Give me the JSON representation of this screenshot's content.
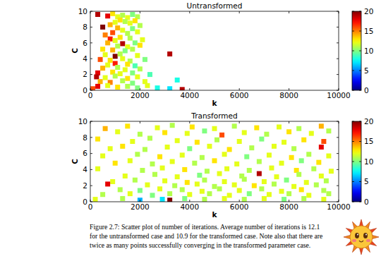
{
  "chart_data": [
    {
      "type": "scatter",
      "title": "Untransformed",
      "x_label": "k",
      "y_label": "C",
      "marker": "square",
      "xlim": [
        0,
        10000
      ],
      "ylim": [
        0,
        10
      ],
      "xticks": [
        0,
        2000,
        4000,
        6000,
        8000,
        10000
      ],
      "yticks": [
        0,
        2,
        4,
        6,
        8,
        10
      ],
      "color_range": [
        0,
        20
      ],
      "color_ticks": [
        0,
        5,
        10,
        15,
        20
      ],
      "x": [
        300,
        700,
        900,
        1100,
        1300,
        1500,
        1700,
        1900,
        1200,
        1000,
        800,
        1400,
        1600,
        1800,
        2000,
        500,
        1100,
        1300,
        1700,
        900,
        600,
        1500,
        1900,
        1200,
        800,
        1000,
        1600,
        2100,
        700,
        1300,
        1800,
        1100,
        1500,
        2000,
        500,
        900,
        1400,
        1700,
        3200,
        1000,
        600,
        1200,
        1900,
        400,
        800,
        1300,
        1600,
        2200,
        1000,
        700,
        1500,
        1800,
        500,
        1100,
        1400,
        2000,
        300,
        900,
        1200,
        1700,
        2400,
        250,
        600,
        1000,
        1500,
        1900,
        3500,
        400,
        800,
        1300,
        1700,
        2200,
        300,
        700,
        1100,
        1500,
        1900,
        2700,
        3200,
        3700,
        100,
        2300
      ],
      "values": [
        9.6,
        9.4,
        9.7,
        9.3,
        9.5,
        9.2,
        9.6,
        9.3,
        8.9,
        8.6,
        8.3,
        8.7,
        8.5,
        8.8,
        8.2,
        8.0,
        7.9,
        7.6,
        7.8,
        7.3,
        7.0,
        7.2,
        7.4,
        6.7,
        6.5,
        6.3,
        6.6,
        6.4,
        6.0,
        5.9,
        6.0,
        5.6,
        5.5,
        5.7,
        5.2,
        5.1,
        5.0,
        5.2,
        4.6,
        4.3,
        4.5,
        4.6,
        4.4,
        3.9,
        3.8,
        4.0,
        3.7,
        3.9,
        3.4,
        3.2,
        3.3,
        3.1,
        2.8,
        2.9,
        2.6,
        2.7,
        2.2,
        2.3,
        2.1,
        2.2,
        2.0,
        1.7,
        1.6,
        1.8,
        1.5,
        1.7,
        1.3,
        1.1,
        1.0,
        1.2,
        0.9,
        1.1,
        0.5,
        0.6,
        0.4,
        0.5,
        0.3,
        0.3,
        0.2,
        0.1,
        0.2,
        0.6
      ],
      "color_values": [
        19,
        18,
        13,
        12,
        11,
        12,
        10,
        11,
        13,
        12,
        14,
        11,
        12,
        13,
        11,
        20,
        14,
        12,
        10,
        16,
        15,
        11,
        12,
        13,
        17,
        12,
        11,
        12,
        14,
        19,
        10,
        11,
        12,
        13,
        13,
        14,
        10,
        11,
        19,
        20,
        12,
        11,
        12,
        16,
        13,
        12,
        11,
        10,
        17,
        12,
        13,
        9,
        14,
        11,
        12,
        11,
        18,
        13,
        12,
        10,
        9,
        19,
        12,
        11,
        13,
        12,
        8,
        14,
        15,
        11,
        10,
        12,
        18,
        12,
        13,
        11,
        10,
        8,
        7,
        19,
        16,
        12
      ]
    },
    {
      "type": "scatter",
      "title": "Transformed",
      "x_label": "k",
      "y_label": "C",
      "marker": "square",
      "xlim": [
        0,
        10000
      ],
      "ylim": [
        0,
        10
      ],
      "xticks": [
        0,
        2000,
        4000,
        6000,
        8000,
        10000
      ],
      "yticks": [
        0,
        2,
        4,
        6,
        8,
        10
      ],
      "color_range": [
        0,
        20
      ],
      "color_ticks": [
        0,
        5,
        10,
        15,
        20
      ],
      "x": [
        600,
        1500,
        2700,
        3300,
        4100,
        5000,
        5800,
        6700,
        7600,
        8400,
        9300,
        1100,
        2000,
        3000,
        3900,
        4600,
        5300,
        6200,
        7100,
        8000,
        8900,
        9600,
        300,
        1700,
        2400,
        3500,
        4300,
        5100,
        6000,
        6900,
        7800,
        8600,
        9400,
        800,
        1300,
        2200,
        3100,
        4000,
        4800,
        5600,
        6500,
        7400,
        8200,
        9300,
        500,
        1900,
        2800,
        3700,
        4500,
        5400,
        6300,
        7200,
        8100,
        8800,
        9600,
        1000,
        1600,
        2500,
        3300,
        4200,
        5000,
        5900,
        6800,
        7700,
        8500,
        9200,
        300,
        2100,
        2900,
        3800,
        4700,
        5500,
        6400,
        7300,
        8300,
        9000,
        9700,
        1400,
        2600,
        3500,
        4400,
        5200,
        6100,
        6800,
        7500,
        8400,
        9300,
        900,
        1800,
        3000,
        3900,
        4600,
        5400,
        6200,
        7000,
        7900,
        8700,
        9500,
        700,
        2300,
        3400,
        4300,
        5000,
        5800,
        6600,
        7400,
        8200,
        9100,
        1200,
        2000,
        2800,
        3700,
        4500,
        5200,
        6000,
        6900,
        7700,
        8500,
        9400,
        500,
        1600,
        2500,
        3200,
        4000,
        4800,
        5600,
        6400,
        7200,
        8000,
        8800,
        9600,
        200,
        1300,
        2000,
        2900,
        3200,
        3800,
        4600,
        5400,
        6200,
        7000,
        7800,
        8600,
        9400
      ],
      "values": [
        9.1,
        9.4,
        9.2,
        9.5,
        9.3,
        9.1,
        9.4,
        9.2,
        9.3,
        9.1,
        9.4,
        8.7,
        8.4,
        8.6,
        8.5,
        8.8,
        8.3,
        8.6,
        8.4,
        8.7,
        8.5,
        8.8,
        7.8,
        7.5,
        7.9,
        7.6,
        7.4,
        7.7,
        7.5,
        7.8,
        7.4,
        7.7,
        7.5,
        6.6,
        6.9,
        6.5,
        6.8,
        6.6,
        6.9,
        6.5,
        6.7,
        6.9,
        6.6,
        6.8,
        5.7,
        5.9,
        5.6,
        5.8,
        5.5,
        5.9,
        5.6,
        5.8,
        5.5,
        5.9,
        5.7,
        4.8,
        5.1,
        4.7,
        5.0,
        4.8,
        5.1,
        4.7,
        5.0,
        4.8,
        5.1,
        4.9,
        4.1,
        3.9,
        4.2,
        4.0,
        3.8,
        4.1,
        3.9,
        4.2,
        3.9,
        4.1,
        3.8,
        3.2,
        3.4,
        3.1,
        3.3,
        3.5,
        3.2,
        3.5,
        3.1,
        3.4,
        3.2,
        2.5,
        2.7,
        2.6,
        2.4,
        2.7,
        2.5,
        2.8,
        2.5,
        2.7,
        2.4,
        2.6,
        2.2,
        2.1,
        2.0,
        2.2,
        1.9,
        2.1,
        2.0,
        2.2,
        1.9,
        2.1,
        1.5,
        1.4,
        1.6,
        1.5,
        1.3,
        1.6,
        1.4,
        1.6,
        1.3,
        1.5,
        1.4,
        0.9,
        1.0,
        0.8,
        1.0,
        0.9,
        1.0,
        0.8,
        1.0,
        0.9,
        1.0,
        0.8,
        1.0,
        0.3,
        0.4,
        0.2,
        0.3,
        0.2,
        0.4,
        0.3,
        0.4,
        0.3,
        0.4,
        0.3,
        0.4,
        0.3
      ],
      "color_values": [
        14,
        13,
        12,
        11,
        13,
        12,
        11,
        13,
        12,
        11,
        14,
        12,
        11,
        13,
        12,
        10,
        16,
        12,
        11,
        13,
        12,
        11,
        13,
        12,
        11,
        12,
        13,
        11,
        12,
        10,
        12,
        13,
        16,
        12,
        13,
        11,
        12,
        10,
        12,
        13,
        11,
        12,
        11,
        18,
        12,
        11,
        13,
        12,
        11,
        12,
        10,
        12,
        13,
        11,
        12,
        13,
        12,
        11,
        12,
        11,
        13,
        12,
        11,
        12,
        10,
        13,
        12,
        11,
        12,
        13,
        11,
        12,
        11,
        12,
        13,
        11,
        12,
        12,
        11,
        12,
        10,
        12,
        11,
        19,
        12,
        11,
        12,
        12,
        11,
        12,
        13,
        11,
        12,
        11,
        12,
        10,
        12,
        11,
        18,
        12,
        11,
        12,
        11,
        12,
        13,
        11,
        12,
        11,
        11,
        10,
        12,
        11,
        12,
        11,
        12,
        11,
        12,
        13,
        11,
        11,
        12,
        10,
        11,
        12,
        11,
        12,
        10,
        12,
        11,
        12,
        11,
        12,
        11,
        6,
        7,
        20,
        10,
        11,
        12,
        11,
        12,
        10,
        11,
        12
      ]
    }
  ],
  "caption": {
    "lines": [
      "Figure 2.7: Scatter plot of number of iterations. Average number of iterations is 12.1",
      "for the untransformed case and 10.9 for the transformed case. Note also that there are",
      "twice as many points successfully converging in the transformed parameter case."
    ]
  }
}
